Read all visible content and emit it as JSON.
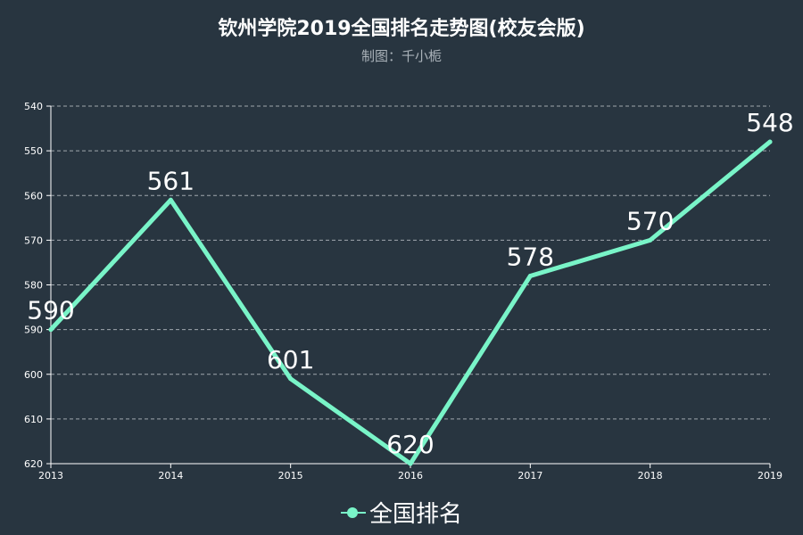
{
  "title": "钦州学院2019全国排名走势图(校友会版)",
  "subtitle": "制图：千小栀",
  "colors": {
    "background": "#283540",
    "series": "#79f4c8",
    "grid": "#c8cdd2",
    "axis": "#ffffff",
    "text": "#ffffff",
    "subtitle": "#aab2b9"
  },
  "chart_data": {
    "type": "line",
    "categories": [
      "2013",
      "2014",
      "2015",
      "2016",
      "2017",
      "2018",
      "2019"
    ],
    "series": [
      {
        "name": "全国排名",
        "values": [
          590,
          561,
          601,
          620,
          578,
          570,
          548
        ]
      }
    ],
    "y_axis": {
      "inverted": true,
      "ylim": [
        540,
        620
      ],
      "ticks": [
        540,
        550,
        560,
        570,
        580,
        590,
        600,
        610,
        620
      ]
    },
    "grid": "horizontal dashed",
    "legend_position": "bottom-center",
    "data_labels": true
  }
}
